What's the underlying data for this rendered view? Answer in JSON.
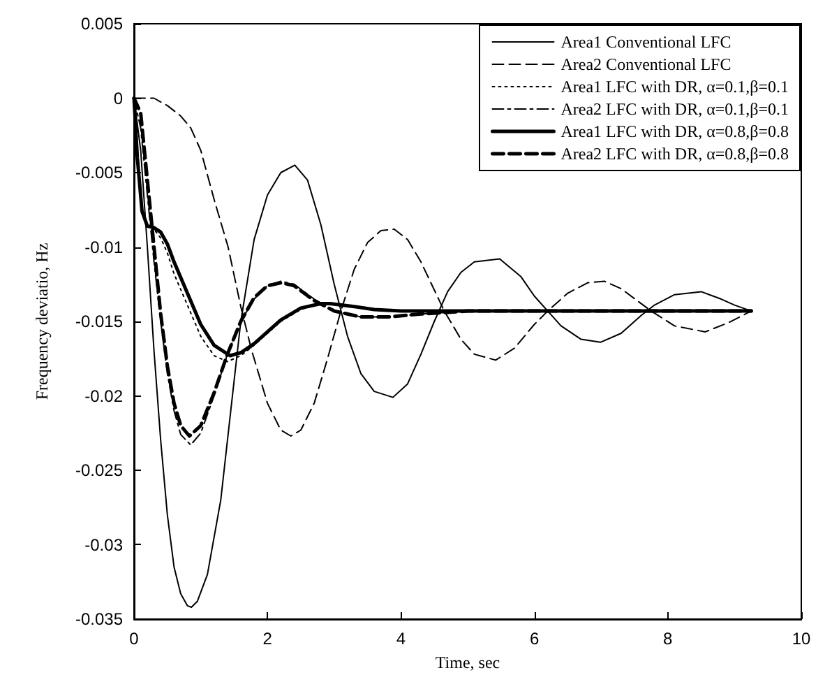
{
  "chart_data": {
    "type": "line",
    "xlabel": "Time, sec",
    "ylabel": "Frequency deviatio, Hz",
    "xlim": [
      0,
      10
    ],
    "xticks": [
      0,
      2,
      4,
      6,
      8,
      10
    ],
    "ylim": [
      -0.035,
      0.005
    ],
    "yticks": [
      -0.035,
      -0.03,
      -0.025,
      -0.02,
      -0.015,
      -0.01,
      -0.005,
      0,
      0.005
    ],
    "grid": false,
    "legend": "top right",
    "marker": "none",
    "series": [
      {
        "name": "Area1 Conventional LFC",
        "color": "#000000",
        "line_style": "solid",
        "x": [
          0,
          0.1,
          0.2,
          0.3,
          0.4,
          0.5,
          0.6,
          0.7,
          0.8,
          0.86,
          0.95,
          1.1,
          1.3,
          1.5,
          1.6,
          1.8,
          2.0,
          2.2,
          2.41,
          2.6,
          2.8,
          3.0,
          3.2,
          3.4,
          3.6,
          3.88,
          4.1,
          4.3,
          4.5,
          4.7,
          4.9,
          5.1,
          5.48,
          5.8,
          6.0,
          6.2,
          6.4,
          6.7,
          6.99,
          7.3,
          7.6,
          7.8,
          8.1,
          8.5,
          8.8,
          9.0,
          9.25
        ],
        "values": [
          0,
          -0.0035,
          -0.01,
          -0.017,
          -0.023,
          -0.028,
          -0.0315,
          -0.0333,
          -0.0341,
          -0.0342,
          -0.0338,
          -0.032,
          -0.027,
          -0.019,
          -0.015,
          -0.0095,
          -0.0065,
          -0.005,
          -0.0045,
          -0.0055,
          -0.0085,
          -0.0125,
          -0.016,
          -0.0185,
          -0.0197,
          -0.0201,
          -0.0192,
          -0.0172,
          -0.015,
          -0.013,
          -0.0117,
          -0.011,
          -0.0108,
          -0.012,
          -0.0133,
          -0.0143,
          -0.0153,
          -0.0162,
          -0.0164,
          -0.0158,
          -0.0146,
          -0.0139,
          -0.0132,
          -0.013,
          -0.0135,
          -0.0139,
          -0.0143
        ]
      },
      {
        "name": "Area2 Conventional LFC",
        "color": "#000000",
        "line_style": "dashed",
        "x": [
          0,
          0.3,
          0.5,
          0.7,
          0.85,
          1.0,
          1.2,
          1.41,
          1.6,
          1.76,
          2.0,
          2.2,
          2.35,
          2.5,
          2.7,
          2.9,
          3.1,
          3.3,
          3.5,
          3.7,
          3.9,
          4.1,
          4.3,
          4.65,
          4.9,
          5.1,
          5.42,
          5.7,
          6.0,
          6.2,
          6.5,
          6.8,
          7.05,
          7.3,
          7.75,
          8.1,
          8.56,
          8.9,
          9.25
        ],
        "values": [
          0,
          0,
          -0.0005,
          -0.0012,
          -0.002,
          -0.0035,
          -0.0068,
          -0.01,
          -0.014,
          -0.0169,
          -0.0205,
          -0.0223,
          -0.0227,
          -0.0223,
          -0.0205,
          -0.0175,
          -0.0143,
          -0.0115,
          -0.0097,
          -0.0089,
          -0.0088,
          -0.0095,
          -0.011,
          -0.0143,
          -0.0162,
          -0.0172,
          -0.0176,
          -0.0168,
          -0.0152,
          -0.0143,
          -0.0131,
          -0.0124,
          -0.0123,
          -0.0128,
          -0.0143,
          -0.0153,
          -0.0157,
          -0.0151,
          -0.0143
        ]
      },
      {
        "name": "Area1 LFC with DR, α=0.1,β=0.1",
        "color": "#000000",
        "line_style": "dotted",
        "x": [
          0,
          0.05,
          0.12,
          0.2,
          0.3,
          0.4,
          0.5,
          0.6,
          0.8,
          1.0,
          1.2,
          1.4,
          1.6,
          1.8,
          2.0,
          2.2,
          2.5,
          2.8,
          3.0,
          3.3,
          3.6,
          4.0,
          5.0,
          6.0,
          7.0,
          8.0,
          9.25
        ],
        "values": [
          0,
          -0.004,
          -0.0075,
          -0.0085,
          -0.0088,
          -0.0094,
          -0.0104,
          -0.0118,
          -0.0139,
          -0.016,
          -0.0173,
          -0.0177,
          -0.0173,
          -0.0166,
          -0.0158,
          -0.015,
          -0.0142,
          -0.0138,
          -0.0138,
          -0.014,
          -0.0142,
          -0.0143,
          -0.0143,
          -0.0143,
          -0.0143,
          -0.0143,
          -0.0143
        ]
      },
      {
        "name": "Area2 LFC with DR, α=0.1,β=0.1",
        "color": "#000000",
        "line_style": "dashdot",
        "x": [
          0,
          0.1,
          0.2,
          0.3,
          0.4,
          0.5,
          0.6,
          0.7,
          0.85,
          1.0,
          1.2,
          1.4,
          1.6,
          1.8,
          2.0,
          2.2,
          2.4,
          2.7,
          3.0,
          3.4,
          3.8,
          4.3,
          5.0,
          6.0,
          7.0,
          8.0,
          9.25
        ],
        "values": [
          0,
          -0.002,
          -0.0065,
          -0.011,
          -0.015,
          -0.0185,
          -0.021,
          -0.0226,
          -0.0233,
          -0.0225,
          -0.02,
          -0.0172,
          -0.015,
          -0.0135,
          -0.0126,
          -0.0123,
          -0.0125,
          -0.0135,
          -0.0143,
          -0.0147,
          -0.0147,
          -0.0145,
          -0.0143,
          -0.0143,
          -0.0143,
          -0.0143,
          -0.0143
        ]
      },
      {
        "name": "Area1 LFC with DR, α=0.8,β=0.8",
        "color": "#000000",
        "line_style": "solid",
        "x": [
          0,
          0.05,
          0.12,
          0.2,
          0.3,
          0.4,
          0.5,
          0.6,
          0.8,
          1.0,
          1.2,
          1.44,
          1.6,
          1.8,
          2.0,
          2.2,
          2.5,
          2.8,
          2.94,
          3.3,
          3.6,
          4.0,
          5.0,
          6.0,
          7.0,
          8.0,
          9.25
        ],
        "values": [
          0,
          -0.004,
          -0.0076,
          -0.0086,
          -0.0087,
          -0.009,
          -0.0098,
          -0.011,
          -0.0131,
          -0.0152,
          -0.0166,
          -0.0173,
          -0.0171,
          -0.0165,
          -0.0157,
          -0.0149,
          -0.0141,
          -0.0138,
          -0.0138,
          -0.014,
          -0.0142,
          -0.0143,
          -0.0143,
          -0.0143,
          -0.0143,
          -0.0143,
          -0.0143
        ]
      },
      {
        "name": "Area2 LFC with DR, α=0.8,β=0.8",
        "color": "#000000",
        "line_style": "dashed",
        "x": [
          0,
          0.1,
          0.2,
          0.3,
          0.4,
          0.5,
          0.6,
          0.7,
          0.83,
          1.0,
          1.2,
          1.4,
          1.6,
          1.8,
          2.0,
          2.21,
          2.4,
          2.7,
          3.0,
          3.4,
          3.8,
          4.3,
          5.0,
          6.0,
          7.0,
          8.0,
          9.25
        ],
        "values": [
          0,
          -0.001,
          -0.0055,
          -0.01,
          -0.0145,
          -0.018,
          -0.0205,
          -0.022,
          -0.0227,
          -0.022,
          -0.0198,
          -0.0172,
          -0.015,
          -0.0134,
          -0.0126,
          -0.0124,
          -0.0126,
          -0.0136,
          -0.0143,
          -0.0147,
          -0.0147,
          -0.0145,
          -0.0143,
          -0.0143,
          -0.0143,
          -0.0143,
          -0.0143
        ]
      }
    ]
  }
}
